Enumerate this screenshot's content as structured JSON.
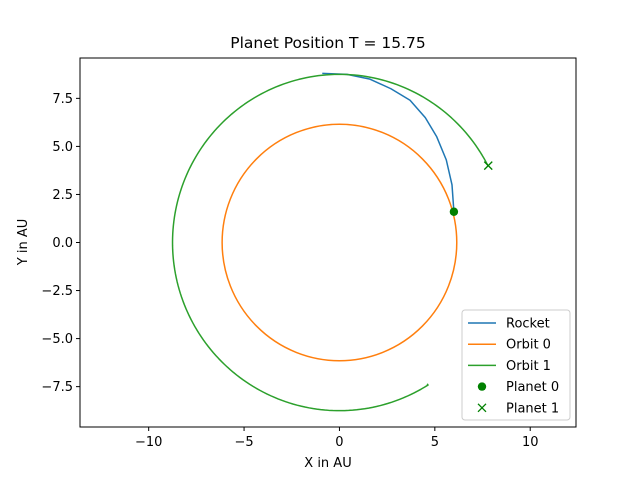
{
  "chart_data": {
    "type": "line",
    "title": "Planet Position T = 15.75",
    "xlabel": "X in AU",
    "ylabel": "Y in AU",
    "xlim": [
      -13.6,
      12.4
    ],
    "ylim": [
      -9.6,
      9.6
    ],
    "xticks": [
      -10,
      -5,
      0,
      5,
      10
    ],
    "yticks": [
      -7.5,
      -5.0,
      -2.5,
      0.0,
      2.5,
      5.0,
      7.5
    ],
    "xtick_labels": [
      "−10",
      "−5",
      "0",
      "5",
      "10"
    ],
    "ytick_labels": [
      "−7.5",
      "−5.0",
      "−2.5",
      "0.0",
      "2.5",
      "5.0",
      "7.5"
    ],
    "grid": false,
    "legend_position": "lower-right",
    "series": [
      {
        "name": "Rocket",
        "kind": "line",
        "color": "#1f77b4",
        "x": [
          6.0,
          5.9,
          5.6,
          5.1,
          4.5,
          3.7,
          2.7,
          1.6,
          0.4,
          -0.9
        ],
        "y": [
          1.6,
          3.0,
          4.3,
          5.5,
          6.5,
          7.4,
          8.0,
          8.5,
          8.75,
          8.8
        ]
      },
      {
        "name": "Orbit 0",
        "kind": "circle",
        "color": "#ff7f0e",
        "center": [
          0.0,
          0.0
        ],
        "radius": 6.15
      },
      {
        "name": "Orbit 1",
        "kind": "arc",
        "color": "#2ca02c",
        "center": [
          0.0,
          0.0
        ],
        "radius": 8.75,
        "start_point": [
          7.8,
          4.0
        ],
        "end_point": [
          4.6,
          -7.35
        ]
      },
      {
        "name": "Planet 0",
        "kind": "marker",
        "marker": "circle",
        "color": "#008000",
        "x": [
          6.0
        ],
        "y": [
          1.6
        ]
      },
      {
        "name": "Planet 1",
        "kind": "marker",
        "marker": "x",
        "color": "#008000",
        "x": [
          7.8
        ],
        "y": [
          4.0
        ]
      }
    ]
  }
}
